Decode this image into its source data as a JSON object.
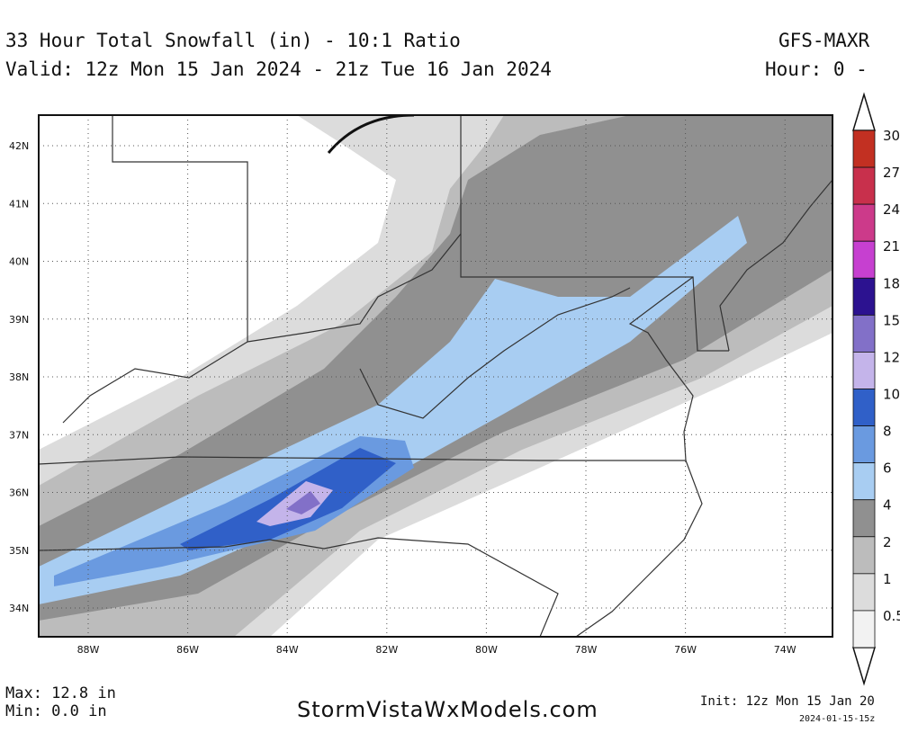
{
  "header": {
    "title": "33 Hour Total Snowfall (in) - 10:1 Ratio",
    "valid": "Valid: 12z Mon 15 Jan 2024 - 21z Tue 16 Jan 2024",
    "model": "GFS-MAXR",
    "hour": "Hour: 0 -"
  },
  "map": {
    "lat_labels": [
      "42N",
      "41N",
      "40N",
      "39N",
      "38N",
      "37N",
      "36N",
      "35N",
      "34N"
    ],
    "lon_labels": [
      "88W",
      "86W",
      "84W",
      "82W",
      "80W",
      "78W",
      "76W",
      "74W"
    ]
  },
  "legend": {
    "levels": [
      {
        "label": "30",
        "color": "#c23022"
      },
      {
        "label": "27",
        "color": "#c8304c"
      },
      {
        "label": "24",
        "color": "#cc3a8a"
      },
      {
        "label": "21",
        "color": "#c640d0"
      },
      {
        "label": "18",
        "color": "#2c1290"
      },
      {
        "label": "15",
        "color": "#8270c8"
      },
      {
        "label": "12",
        "color": "#c4b4ea"
      },
      {
        "label": "10",
        "color": "#3060c8"
      },
      {
        "label": "8",
        "color": "#6a9ae0"
      },
      {
        "label": "6",
        "color": "#a8cdf2"
      },
      {
        "label": "4",
        "color": "#909090"
      },
      {
        "label": "2",
        "color": "#bcbcbc"
      },
      {
        "label": "1",
        "color": "#dcdcdc"
      },
      {
        "label": "0.5",
        "color": "#f2f2f2"
      }
    ]
  },
  "footer": {
    "max": "Max: 12.8 in",
    "min": "Min: 0.0 in",
    "site": "StormVistaWxModels.com",
    "init": "Init: 12z Mon 15 Jan 20",
    "timestamp": "2024-01-15-15z"
  }
}
